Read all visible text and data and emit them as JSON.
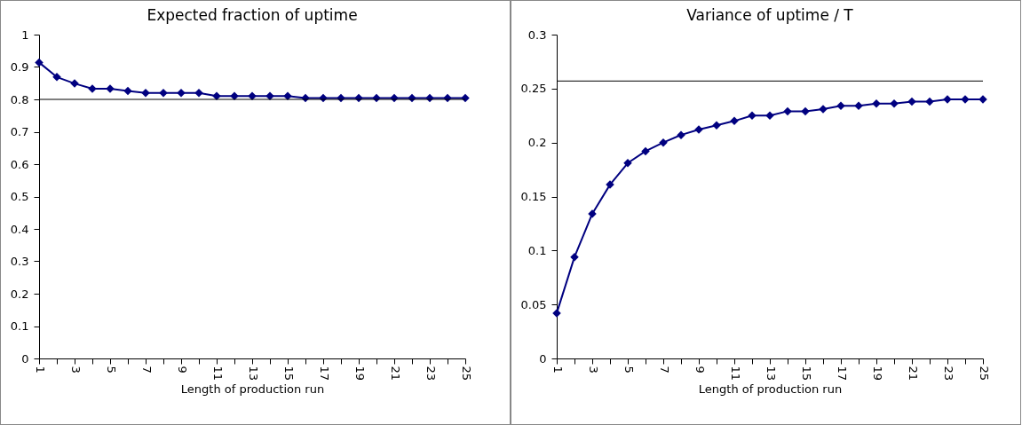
{
  "chart_data": [
    {
      "type": "line",
      "title": "Expected fraction of uptime",
      "xlabel": "Length of production run",
      "x": [
        1,
        2,
        3,
        4,
        5,
        6,
        7,
        8,
        9,
        10,
        11,
        12,
        13,
        14,
        15,
        16,
        17,
        18,
        19,
        20,
        21,
        22,
        23,
        24,
        25
      ],
      "series": [
        {
          "color": "#000080",
          "values": [
            0.914,
            0.869,
            0.849,
            0.833,
            0.833,
            0.826,
            0.82,
            0.82,
            0.82,
            0.82,
            0.81,
            0.81,
            0.81,
            0.81,
            0.81,
            0.804,
            0.804,
            0.804,
            0.804,
            0.804,
            0.804,
            0.804,
            0.804,
            0.804,
            0.804
          ]
        }
      ],
      "xlim": [
        1,
        25
      ],
      "xticks": [
        1,
        {
          "value": 2,
          "label": null
        },
        3,
        {
          "value": 4,
          "label": null
        },
        5,
        {
          "value": 6,
          "label": null
        },
        7,
        {
          "value": 8,
          "label": null
        },
        9,
        {
          "value": 10,
          "label": null
        },
        11,
        {
          "value": 12,
          "label": null
        },
        13,
        {
          "value": 14,
          "label": null
        },
        15,
        {
          "value": 16,
          "label": null
        },
        17,
        {
          "value": 18,
          "label": null
        },
        19,
        {
          "value": 20,
          "label": null
        },
        21,
        {
          "value": 22,
          "label": null
        },
        23,
        {
          "value": 24,
          "label": null
        },
        25
      ],
      "ylim": [
        0,
        1
      ],
      "yticks": [
        0,
        0.1,
        0.2,
        0.3,
        0.4,
        0.5,
        0.6,
        0.7,
        0.8,
        0.9,
        1
      ],
      "ref_lines": [
        {
          "axis": "y",
          "value": 0.8,
          "color": "#000000"
        }
      ],
      "marker": "diamond",
      "grid": false
    },
    {
      "type": "line",
      "title": "Variance of uptime / T",
      "xlabel": "Length of production run",
      "x": [
        1,
        2,
        3,
        4,
        5,
        6,
        7,
        8,
        9,
        10,
        11,
        12,
        13,
        14,
        15,
        16,
        17,
        18,
        19,
        20,
        21,
        22,
        23,
        24,
        25
      ],
      "series": [
        {
          "color": "#000080",
          "values": [
            0.042,
            0.094,
            0.134,
            0.161,
            0.181,
            0.192,
            0.2,
            0.207,
            0.212,
            0.216,
            0.22,
            0.225,
            0.225,
            0.229,
            0.229,
            0.231,
            0.234,
            0.234,
            0.236,
            0.236,
            0.238,
            0.238,
            0.24,
            0.24,
            0.24
          ]
        }
      ],
      "xlim": [
        1,
        25
      ],
      "xticks": [
        1,
        {
          "value": 2,
          "label": null
        },
        3,
        {
          "value": 4,
          "label": null
        },
        5,
        {
          "value": 6,
          "label": null
        },
        7,
        {
          "value": 8,
          "label": null
        },
        9,
        {
          "value": 10,
          "label": null
        },
        11,
        {
          "value": 12,
          "label": null
        },
        13,
        {
          "value": 14,
          "label": null
        },
        15,
        {
          "value": 16,
          "label": null
        },
        17,
        {
          "value": 18,
          "label": null
        },
        19,
        {
          "value": 20,
          "label": null
        },
        21,
        {
          "value": 22,
          "label": null
        },
        23,
        {
          "value": 24,
          "label": null
        },
        25
      ],
      "ylim": [
        0,
        0.3
      ],
      "yticks": [
        0,
        0.05,
        0.1,
        0.15,
        0.2,
        0.25,
        0.3
      ],
      "ref_lines": [
        {
          "axis": "y",
          "value": 0.257,
          "color": "#000000"
        }
      ],
      "marker": "diamond",
      "grid": false
    }
  ]
}
